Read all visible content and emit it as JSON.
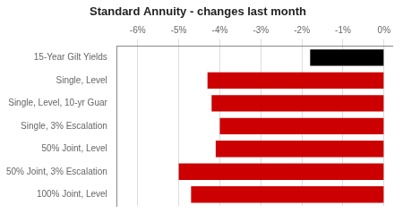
{
  "chart_data": {
    "type": "bar",
    "orientation": "horizontal",
    "title": "Standard Annuity - changes last month",
    "categories": [
      "100% Joint, Level",
      "50% Joint, 3% Escalation",
      "50% Joint, Level",
      "Single, 3% Escalation",
      "Single, Level, 10-yr Guar",
      "Single, Level",
      "15-Year Gilt Yields"
    ],
    "values": [
      -4.7,
      -5.0,
      -4.1,
      -4.0,
      -4.2,
      -4.3,
      -1.8
    ],
    "colors": [
      "#cc0000",
      "#cc0000",
      "#cc0000",
      "#cc0000",
      "#cc0000",
      "#cc0000",
      "#000000"
    ],
    "xlim": [
      -6.5,
      0.2
    ],
    "xticks": [
      {
        "value": -6,
        "label": "-6%"
      },
      {
        "value": -5,
        "label": "-5%"
      },
      {
        "value": -4,
        "label": "-4%"
      },
      {
        "value": -3,
        "label": "-3%"
      },
      {
        "value": -2,
        "label": "-2%"
      },
      {
        "value": -1,
        "label": "-1%"
      },
      {
        "value": 0,
        "label": "0%"
      }
    ],
    "grid": true
  }
}
